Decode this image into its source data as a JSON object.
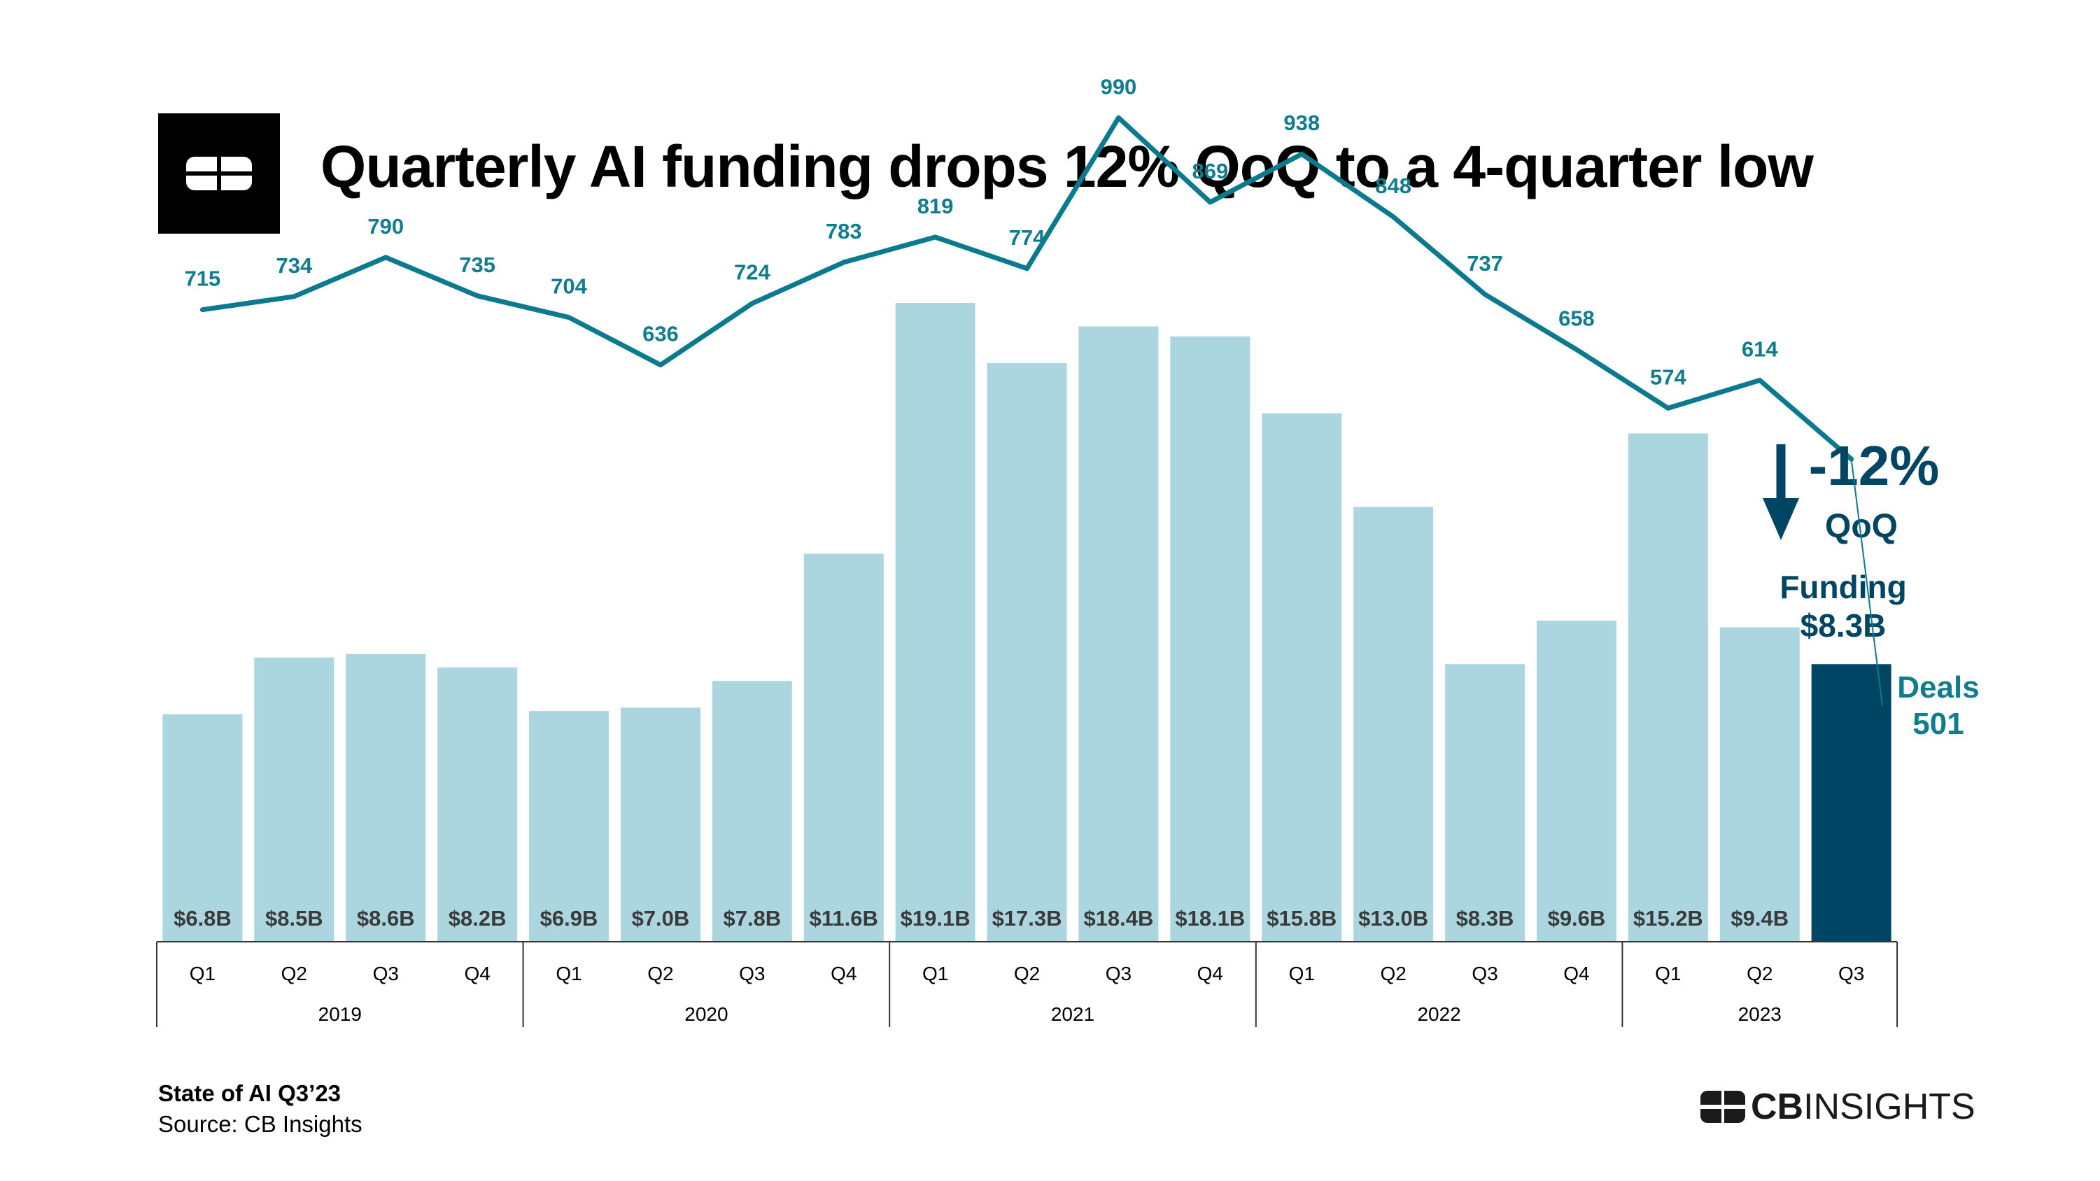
{
  "header": {
    "title": "Quarterly AI funding drops 12% QoQ to a 4-quarter low"
  },
  "footer": {
    "report": "State of AI Q3’23",
    "source": "Source: CB Insights",
    "brand_bold": "CB",
    "brand_light": "INSIGHTS"
  },
  "colors": {
    "bar": "#acd6df",
    "bar_highlight": "#004564",
    "line": "#0b7a8e",
    "deal_label": "#107d8f",
    "funding_label": "#3a3a3a",
    "callout": "#004564",
    "text": "#000000"
  },
  "chart_data": {
    "type": "bar",
    "combo_line": true,
    "categories": [
      "Q1",
      "Q2",
      "Q3",
      "Q4",
      "Q1",
      "Q2",
      "Q3",
      "Q4",
      "Q1",
      "Q2",
      "Q3",
      "Q4",
      "Q1",
      "Q2",
      "Q3",
      "Q4",
      "Q1",
      "Q2",
      "Q3"
    ],
    "years": [
      {
        "label": "2019",
        "quarters": 4
      },
      {
        "label": "2020",
        "quarters": 4
      },
      {
        "label": "2021",
        "quarters": 4
      },
      {
        "label": "2022",
        "quarters": 4
      },
      {
        "label": "2023",
        "quarters": 3
      }
    ],
    "series": [
      {
        "name": "Funding",
        "type": "bar",
        "values": [
          6.8,
          8.5,
          8.6,
          8.2,
          6.9,
          7.0,
          7.8,
          11.6,
          19.1,
          17.3,
          18.4,
          18.1,
          15.8,
          13.0,
          8.3,
          9.6,
          15.2,
          9.4,
          8.3
        ],
        "labels": [
          "$6.8B",
          "$8.5B",
          "$8.6B",
          "$8.2B",
          "$6.9B",
          "$7.0B",
          "$7.8B",
          "$11.6B",
          "$19.1B",
          "$17.3B",
          "$18.4B",
          "$18.1B",
          "$15.8B",
          "$13.0B",
          "$8.3B",
          "$9.6B",
          "$15.2B",
          "$9.4B",
          ""
        ]
      },
      {
        "name": "Deals",
        "type": "line",
        "values": [
          715,
          734,
          790,
          735,
          704,
          636,
          724,
          783,
          819,
          774,
          990,
          869,
          938,
          848,
          737,
          658,
          574,
          614,
          501
        ],
        "labels": [
          "715",
          "734",
          "790",
          "735",
          "704",
          "636",
          "724",
          "783",
          "819",
          "774",
          "990",
          "869",
          "938",
          "848",
          "737",
          "658",
          "574",
          "614",
          ""
        ]
      }
    ],
    "callouts": {
      "change": "-12%",
      "change_unit": "QoQ",
      "funding_label": "Funding",
      "funding_value": "$8.3B",
      "deals_label": "Deals",
      "deals_value": "501"
    },
    "grid": false,
    "legend": "none"
  }
}
